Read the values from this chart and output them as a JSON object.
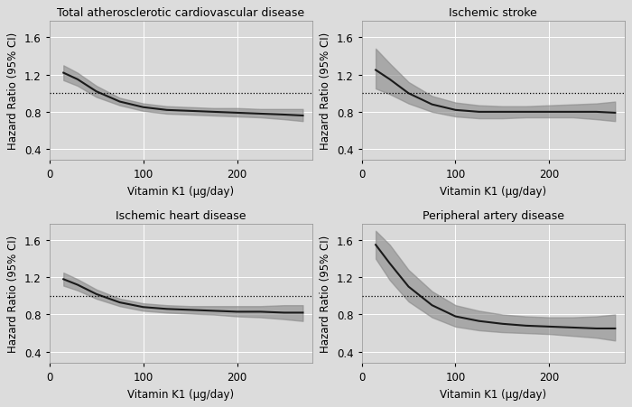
{
  "titles": [
    "Total atherosclerotic cardiovascular disease",
    "Ischemic stroke",
    "Ischemic heart disease",
    "Peripheral artery disease"
  ],
  "xlabel": "Vitamin K1 (μg/day)",
  "ylabel": "Hazard Ratio (95% CI)",
  "xlim": [
    0,
    280
  ],
  "ylim": [
    0.28,
    1.78
  ],
  "yticks": [
    0.4,
    0.8,
    1.2,
    1.6
  ],
  "xticks": [
    0,
    100,
    200
  ],
  "ref_line": 1.0,
  "fig_bg_color": "#DCDCDC",
  "panel_bg_color": "#D9D9D9",
  "line_color": "#1a1a1a",
  "ci_color": "#888888",
  "ci_alpha": 0.6,
  "grid_color": "#FFFFFF",
  "panels": [
    {
      "x": [
        15,
        30,
        50,
        75,
        100,
        125,
        150,
        175,
        200,
        225,
        250,
        270
      ],
      "y": [
        1.22,
        1.15,
        1.02,
        0.91,
        0.85,
        0.82,
        0.81,
        0.8,
        0.79,
        0.78,
        0.77,
        0.76
      ],
      "ci_upper": [
        1.3,
        1.22,
        1.08,
        0.95,
        0.89,
        0.86,
        0.85,
        0.84,
        0.84,
        0.83,
        0.83,
        0.83
      ],
      "ci_lower": [
        1.14,
        1.08,
        0.96,
        0.87,
        0.81,
        0.78,
        0.77,
        0.76,
        0.75,
        0.74,
        0.72,
        0.7
      ]
    },
    {
      "x": [
        15,
        30,
        50,
        75,
        100,
        125,
        150,
        175,
        200,
        225,
        250,
        270
      ],
      "y": [
        1.25,
        1.15,
        1.0,
        0.88,
        0.82,
        0.8,
        0.8,
        0.8,
        0.8,
        0.8,
        0.8,
        0.79
      ],
      "ci_upper": [
        1.48,
        1.32,
        1.12,
        0.97,
        0.9,
        0.87,
        0.86,
        0.86,
        0.87,
        0.88,
        0.89,
        0.91
      ],
      "ci_lower": [
        1.05,
        0.99,
        0.89,
        0.8,
        0.75,
        0.73,
        0.73,
        0.74,
        0.74,
        0.74,
        0.72,
        0.7
      ]
    },
    {
      "x": [
        15,
        30,
        50,
        75,
        100,
        125,
        150,
        175,
        200,
        225,
        250,
        270
      ],
      "y": [
        1.18,
        1.12,
        1.02,
        0.93,
        0.88,
        0.86,
        0.85,
        0.84,
        0.83,
        0.83,
        0.82,
        0.82
      ],
      "ci_upper": [
        1.25,
        1.18,
        1.07,
        0.97,
        0.92,
        0.9,
        0.89,
        0.89,
        0.89,
        0.89,
        0.9,
        0.9
      ],
      "ci_lower": [
        1.11,
        1.06,
        0.97,
        0.89,
        0.84,
        0.82,
        0.81,
        0.8,
        0.78,
        0.77,
        0.75,
        0.73
      ]
    },
    {
      "x": [
        15,
        30,
        50,
        75,
        100,
        125,
        150,
        175,
        200,
        225,
        250,
        270
      ],
      "y": [
        1.55,
        1.35,
        1.1,
        0.9,
        0.78,
        0.73,
        0.7,
        0.68,
        0.67,
        0.66,
        0.65,
        0.65
      ],
      "ci_upper": [
        1.7,
        1.55,
        1.28,
        1.05,
        0.9,
        0.84,
        0.8,
        0.78,
        0.77,
        0.77,
        0.78,
        0.8
      ],
      "ci_lower": [
        1.4,
        1.17,
        0.94,
        0.77,
        0.67,
        0.63,
        0.61,
        0.6,
        0.59,
        0.57,
        0.55,
        0.52
      ]
    }
  ]
}
